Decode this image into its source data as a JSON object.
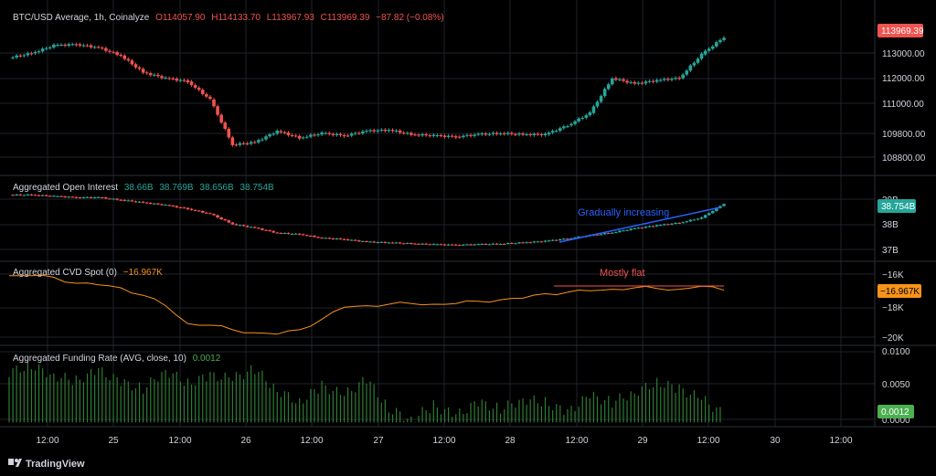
{
  "colors": {
    "up": "#26a69a",
    "down": "#ef5350",
    "orange": "#f7931a",
    "blue": "#2962ff",
    "green": "#4caf50",
    "text": "#d1d4dc",
    "muted": "#b2b5be",
    "grid": "#1e222d",
    "sep": "#2a2e39"
  },
  "brand": {
    "name": "TradingView",
    "icon": "tradingview-logo-icon"
  },
  "panes": {
    "price": {
      "title": "BTC/USD Average, 1h, Coinalyze",
      "o": "O114057.90",
      "h": "H114133.70",
      "l": "L113967.93",
      "c": "C113969.39",
      "chg": "−87.82 (−0.08%)",
      "ticks": [
        "113000.00",
        "112000.00",
        "111000.00",
        "109800.00",
        "108800.00"
      ],
      "last": "113969.39"
    },
    "oi": {
      "title": "Aggregated Open Interest",
      "v1": "38.66B",
      "v2": "38.769B",
      "v3": "38.656B",
      "v4": "38.754B",
      "ticks": [
        "39B",
        "38B",
        "37B"
      ],
      "last": "38.754B",
      "annotation": "Gradually increasing"
    },
    "cvd": {
      "title": "Aggregated CVD Spot (0)",
      "value": "−16.967K",
      "ticks": [
        "−16K",
        "−18K",
        "−20K"
      ],
      "last": "−16.967K",
      "annotation": "Mostly flat"
    },
    "funding": {
      "title": "Aggregated Funding Rate (AVG, close, 10)",
      "value": "0.0012",
      "ticks": [
        "0.0100",
        "0.0050",
        "0.0000"
      ],
      "last": "0.0012"
    }
  },
  "xaxis": [
    "12:00",
    "25",
    "12:00",
    "26",
    "12:00",
    "27",
    "12:00",
    "28",
    "12:00",
    "29",
    "12:00",
    "30",
    "12:00"
  ],
  "chart_data": [
    {
      "type": "candlestick",
      "title": "BTC/USD Average, 1h, Coinalyze",
      "x": [
        "24 06:00",
        "24 10:00",
        "24 14:00",
        "24 18:00",
        "24 22:00",
        "25 02:00",
        "25 06:00",
        "25 10:00",
        "25 14:00",
        "25 18:00",
        "25 22:00",
        "26 02:00",
        "26 06:00",
        "26 10:00",
        "26 14:00",
        "26 18:00",
        "26 22:00",
        "27 02:00",
        "27 06:00",
        "27 10:00",
        "27 14:00",
        "27 18:00",
        "27 22:00",
        "28 02:00",
        "28 06:00",
        "28 10:00",
        "28 14:00",
        "28 18:00",
        "28 22:00",
        "29 02:00",
        "29 06:00",
        "29 10:00",
        "29 14:00"
      ],
      "close": [
        113050,
        113250,
        113600,
        113650,
        113500,
        113150,
        112400,
        112150,
        112000,
        111200,
        109200,
        109300,
        109800,
        109500,
        109700,
        109600,
        109800,
        109850,
        109650,
        109600,
        109550,
        109650,
        109700,
        109650,
        109650,
        110050,
        110600,
        112150,
        111900,
        112050,
        112150,
        113200,
        113970
      ],
      "ylim": [
        108400,
        114400
      ]
    },
    {
      "type": "candlestick",
      "title": "Aggregated Open Interest",
      "x": [
        "24 06:00",
        "24 10:00",
        "24 14:00",
        "24 18:00",
        "24 22:00",
        "25 02:00",
        "25 06:00",
        "25 10:00",
        "25 14:00",
        "25 18:00",
        "25 22:00",
        "26 02:00",
        "26 06:00",
        "26 10:00",
        "26 14:00",
        "26 18:00",
        "26 22:00",
        "27 02:00",
        "27 06:00",
        "27 10:00",
        "27 14:00",
        "27 18:00",
        "27 22:00",
        "28 02:00",
        "28 06:00",
        "28 10:00",
        "28 14:00",
        "28 18:00",
        "28 22:00",
        "29 02:00",
        "29 06:00",
        "29 10:00",
        "29 14:00"
      ],
      "close": [
        39.1,
        39.1,
        39.05,
        39.0,
        39.0,
        38.9,
        38.8,
        38.7,
        38.55,
        38.35,
        37.95,
        37.8,
        37.6,
        37.55,
        37.4,
        37.35,
        37.25,
        37.22,
        37.18,
        37.15,
        37.13,
        37.15,
        37.17,
        37.22,
        37.28,
        37.38,
        37.5,
        37.62,
        37.78,
        37.9,
        38.0,
        38.2,
        38.754
      ],
      "ylim": [
        36.7,
        39.4
      ]
    },
    {
      "type": "line",
      "title": "Aggregated CVD Spot (0)",
      "x": [
        "24 06:00",
        "24 10:00",
        "24 14:00",
        "24 18:00",
        "24 22:00",
        "25 02:00",
        "25 06:00",
        "25 10:00",
        "25 14:00",
        "25 18:00",
        "25 22:00",
        "26 02:00",
        "26 06:00",
        "26 10:00",
        "26 14:00",
        "26 18:00",
        "26 22:00",
        "27 02:00",
        "27 06:00",
        "27 10:00",
        "27 14:00",
        "27 18:00",
        "27 22:00",
        "28 02:00",
        "28 06:00",
        "28 10:00",
        "28 14:00",
        "28 18:00",
        "28 22:00",
        "29 02:00",
        "29 06:00",
        "29 10:00",
        "29 14:00"
      ],
      "y": [
        -16.0,
        -16.0,
        -16.1,
        -16.5,
        -16.6,
        -16.8,
        -17.3,
        -18.0,
        -19.2,
        -19.3,
        -19.6,
        -19.8,
        -19.9,
        -19.6,
        -18.9,
        -18.1,
        -18.0,
        -17.9,
        -17.85,
        -17.9,
        -17.85,
        -17.7,
        -17.6,
        -17.5,
        -17.2,
        -17.1,
        -17.0,
        -16.9,
        -16.8,
        -16.85,
        -16.9,
        -16.7,
        -16.967
      ],
      "ylim": [
        -20.4,
        -15.4
      ]
    },
    {
      "type": "bar",
      "title": "Aggregated Funding Rate (AVG, close, 10)",
      "x": [
        "24 06:00",
        "24 10:00",
        "24 14:00",
        "24 18:00",
        "24 22:00",
        "25 02:00",
        "25 06:00",
        "25 10:00",
        "25 14:00",
        "25 18:00",
        "25 22:00",
        "26 02:00",
        "26 06:00",
        "26 10:00",
        "26 14:00",
        "26 18:00",
        "26 22:00",
        "27 02:00",
        "27 06:00",
        "27 10:00",
        "27 14:00",
        "27 18:00",
        "27 22:00",
        "28 02:00",
        "28 06:00",
        "28 10:00",
        "28 14:00",
        "28 18:00",
        "28 22:00",
        "29 02:00",
        "29 06:00",
        "29 10:00",
        "29 14:00"
      ],
      "values": [
        0.0075,
        0.0085,
        0.007,
        0.0062,
        0.0078,
        0.006,
        0.005,
        0.0078,
        0.0058,
        0.007,
        0.0065,
        0.008,
        0.0048,
        0.003,
        0.0055,
        0.004,
        0.0065,
        0.002,
        0.0005,
        0.0025,
        0.001,
        0.003,
        0.002,
        0.0035,
        0.003,
        0.0015,
        0.004,
        0.003,
        0.0045,
        0.006,
        0.005,
        0.0035,
        0.0012
      ],
      "ylim": [
        -0.0005,
        0.0108
      ]
    }
  ]
}
